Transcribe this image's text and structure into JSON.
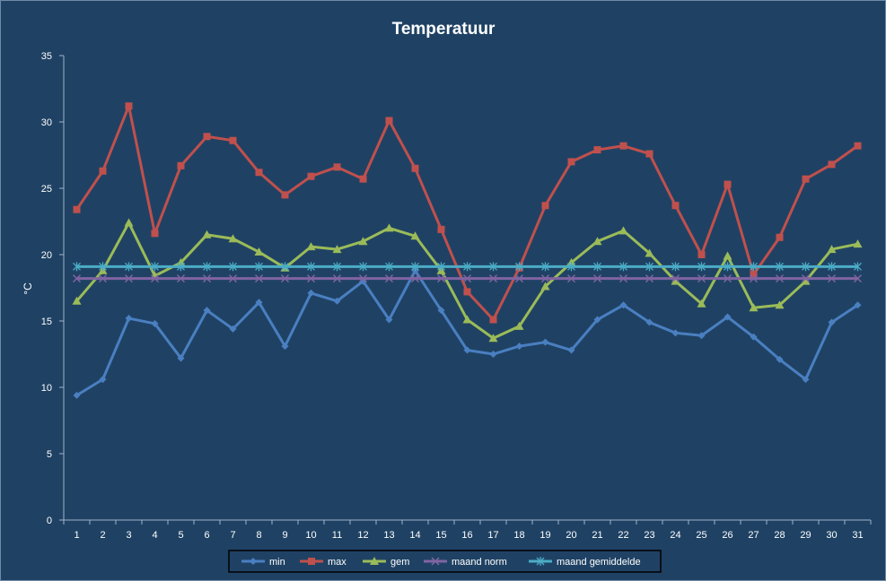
{
  "chart_data": {
    "type": "line",
    "title": "Temperatuur",
    "xlabel": "",
    "ylabel": "°C",
    "ylim": [
      0,
      35
    ],
    "yticks": [
      0,
      5,
      10,
      15,
      20,
      25,
      30,
      35
    ],
    "grid": false,
    "legend_position": "bottom",
    "categories": [
      "1",
      "2",
      "3",
      "4",
      "5",
      "6",
      "7",
      "8",
      "9",
      "10",
      "11",
      "12",
      "13",
      "14",
      "15",
      "16",
      "17",
      "18",
      "19",
      "20",
      "21",
      "22",
      "23",
      "24",
      "25",
      "26",
      "27",
      "28",
      "29",
      "30",
      "31"
    ],
    "series": [
      {
        "name": "min",
        "color": "#4a7fc1",
        "marker": "diamond",
        "values": [
          9.4,
          10.6,
          15.2,
          14.8,
          12.2,
          15.8,
          14.4,
          16.4,
          13.1,
          17.1,
          16.5,
          18.0,
          15.1,
          18.8,
          15.8,
          12.8,
          12.5,
          13.1,
          13.4,
          12.8,
          15.1,
          16.2,
          14.9,
          14.1,
          13.9,
          15.3,
          13.8,
          12.1,
          10.6,
          14.9,
          16.2
        ]
      },
      {
        "name": "max",
        "color": "#c0504d",
        "marker": "square",
        "values": [
          23.4,
          26.3,
          31.2,
          21.6,
          26.7,
          28.9,
          28.6,
          26.2,
          24.5,
          25.9,
          26.6,
          25.7,
          30.1,
          26.5,
          21.9,
          17.2,
          15.1,
          19.0,
          23.7,
          27.0,
          27.9,
          28.2,
          27.6,
          23.7,
          20.0,
          25.3,
          18.5,
          21.3,
          25.7,
          26.8,
          28.2
        ]
      },
      {
        "name": "gem",
        "color": "#9bbb59",
        "marker": "triangle",
        "values": [
          16.5,
          18.8,
          22.4,
          18.4,
          19.4,
          21.5,
          21.2,
          20.2,
          19.0,
          20.6,
          20.4,
          21.0,
          22.0,
          21.4,
          18.8,
          15.1,
          13.7,
          14.6,
          17.6,
          19.4,
          21.0,
          21.8,
          20.1,
          18.0,
          16.3,
          19.9,
          16.0,
          16.2,
          18.0,
          20.4,
          20.8
        ]
      },
      {
        "name": "maand norm",
        "color": "#8064a2",
        "marker": "x",
        "values": [
          18.2,
          18.2,
          18.2,
          18.2,
          18.2,
          18.2,
          18.2,
          18.2,
          18.2,
          18.2,
          18.2,
          18.2,
          18.2,
          18.2,
          18.2,
          18.2,
          18.2,
          18.2,
          18.2,
          18.2,
          18.2,
          18.2,
          18.2,
          18.2,
          18.2,
          18.2,
          18.2,
          18.2,
          18.2,
          18.2,
          18.2
        ]
      },
      {
        "name": "maand gemiddelde",
        "color": "#4bacc6",
        "marker": "star",
        "values": [
          19.1,
          19.1,
          19.1,
          19.1,
          19.1,
          19.1,
          19.1,
          19.1,
          19.1,
          19.1,
          19.1,
          19.1,
          19.1,
          19.1,
          19.1,
          19.1,
          19.1,
          19.1,
          19.1,
          19.1,
          19.1,
          19.1,
          19.1,
          19.1,
          19.1,
          19.1,
          19.1,
          19.1,
          19.1,
          19.1,
          19.1
        ]
      }
    ]
  },
  "colors": {
    "background": "#1f4264",
    "axis": "#9fb3c8",
    "text": "#ffffff"
  }
}
